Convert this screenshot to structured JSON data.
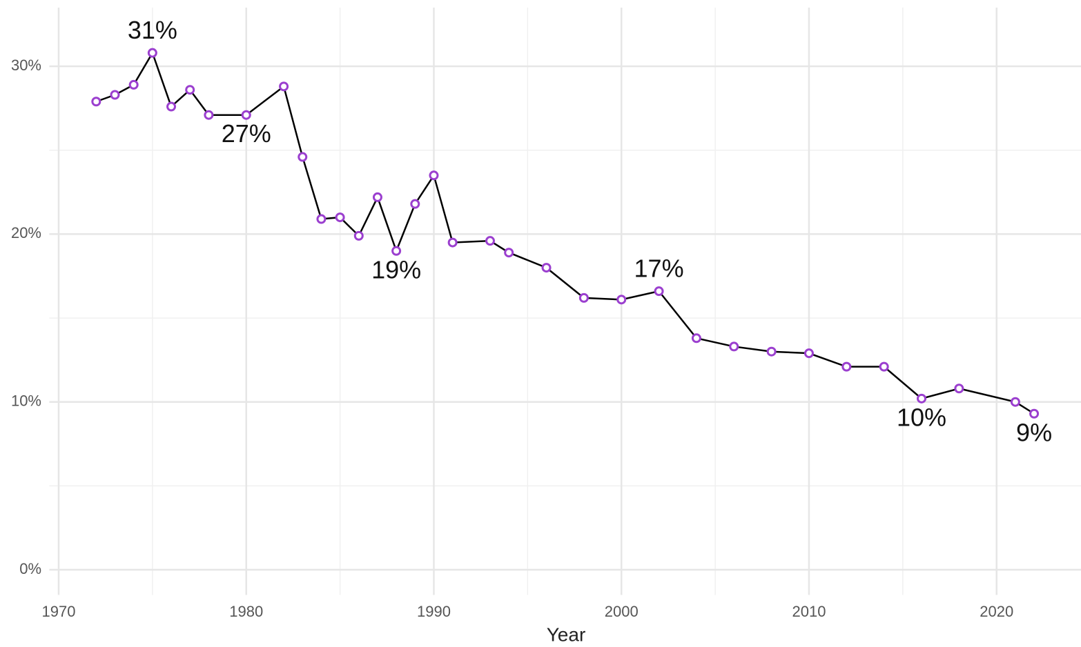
{
  "chart_data": {
    "type": "line",
    "x_label": "Year",
    "x": [
      1972,
      1973,
      1974,
      1975,
      1976,
      1977,
      1978,
      1980,
      1982,
      1983,
      1984,
      1985,
      1986,
      1987,
      1988,
      1989,
      1990,
      1991,
      1993,
      1994,
      1996,
      1998,
      2000,
      2002,
      2004,
      2006,
      2008,
      2010,
      2012,
      2014,
      2016,
      2018,
      2021,
      2022
    ],
    "series": [
      {
        "color": "#9b3fcf",
        "line_color": "#000000",
        "values": [
          27.9,
          28.3,
          28.9,
          30.8,
          27.6,
          28.6,
          27.1,
          27.1,
          28.8,
          24.6,
          20.9,
          21.0,
          19.9,
          22.2,
          19.0,
          21.8,
          23.5,
          19.5,
          19.6,
          18.9,
          18.0,
          16.2,
          16.1,
          16.6,
          13.8,
          13.3,
          13.0,
          12.9,
          12.1,
          12.1,
          10.2,
          10.8,
          10.0,
          9.3
        ],
        "value_labels": [
          null,
          null,
          null,
          "31%",
          null,
          null,
          null,
          "27%",
          null,
          null,
          null,
          null,
          null,
          null,
          "19%",
          null,
          null,
          null,
          null,
          null,
          null,
          null,
          null,
          "17%",
          null,
          null,
          null,
          null,
          null,
          null,
          "10%",
          null,
          null,
          "9%"
        ]
      }
    ],
    "xlim": [
      1969.5,
      2024.5
    ],
    "xticks": [
      1970,
      1980,
      1990,
      2000,
      2010,
      2020
    ],
    "xminor_ticks": [
      1975,
      1985,
      1995,
      2005,
      2015
    ],
    "ylim": [
      -1.5,
      33.5
    ],
    "yticks": [
      {
        "value": 0,
        "label": "0%"
      },
      {
        "value": 10,
        "label": "10%"
      },
      {
        "value": 20,
        "label": "20%"
      },
      {
        "value": 30,
        "label": "30%"
      }
    ],
    "yminor_ticks": [
      5,
      15,
      25
    ],
    "grid": true
  }
}
